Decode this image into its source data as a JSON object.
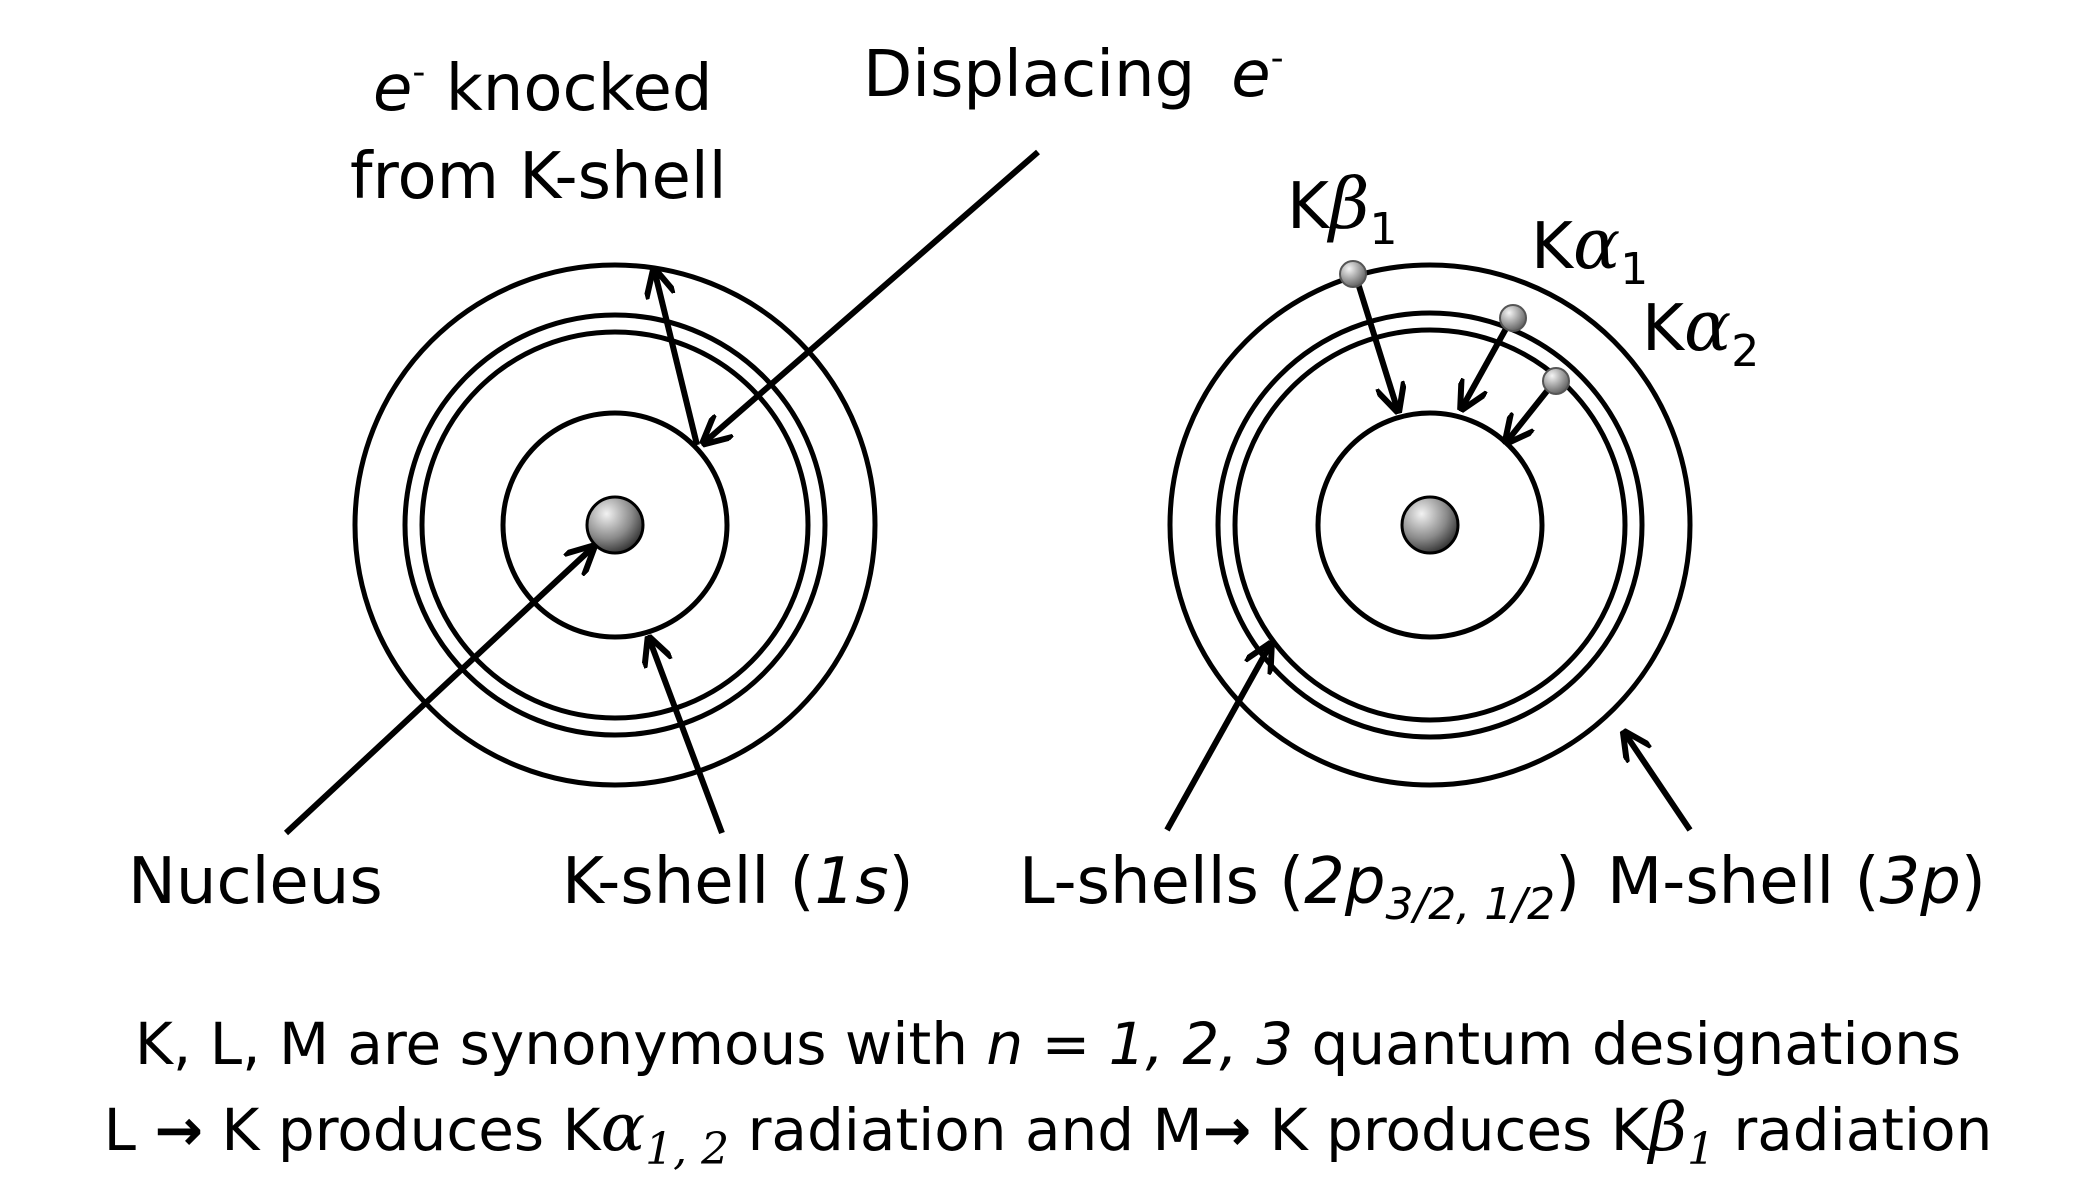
{
  "left_atom": {
    "label_knocked_line1_e": "e",
    "label_knocked_line1_sup": "-",
    "label_knocked_line1_rest": " knocked",
    "label_knocked_line2": "from K-shell",
    "label_displacing": "Displacing",
    "label_displacing_e": "e",
    "label_displacing_sup": "-",
    "label_nucleus": "Nucleus",
    "label_kshell_pre": "K-shell (",
    "label_kshell_it": "1s",
    "label_kshell_post": ")"
  },
  "right_atom": {
    "kbeta_K": "K",
    "kbeta_greek": "β",
    "kbeta_sub": "1",
    "kalpha1_K": "K",
    "kalpha1_greek": "α",
    "kalpha1_sub": "1",
    "kalpha2_K": "K",
    "kalpha2_greek": "α",
    "kalpha2_sub": "2",
    "label_lshells_pre": "L-shells (",
    "label_lshells_it": "2p",
    "label_lshells_sub": "3/2, 1/2",
    "label_lshells_post": ")",
    "label_mshell_pre": "M-shell (",
    "label_mshell_it": "3p",
    "label_mshell_post": ")"
  },
  "caption": {
    "line1_pre": "K, L, M are synonymous with ",
    "line1_it": "n = 1, 2, 3",
    "line1_post": " quantum designations",
    "line2_a": "L ",
    "line2_arrow1": "→",
    "line2_b": " K produces K",
    "line2_greek1": "α",
    "line2_sub1": "1, 2",
    "line2_c": " radiation and M",
    "line2_arrow2": "→",
    "line2_d": " K produces K",
    "line2_greek2": "β",
    "line2_sub2": "1",
    "line2_e": " radiation"
  },
  "colors": {
    "stroke": "#000000",
    "nucleus_light": "#e8e8e8",
    "nucleus_dark": "#404040",
    "background": "#ffffff"
  }
}
